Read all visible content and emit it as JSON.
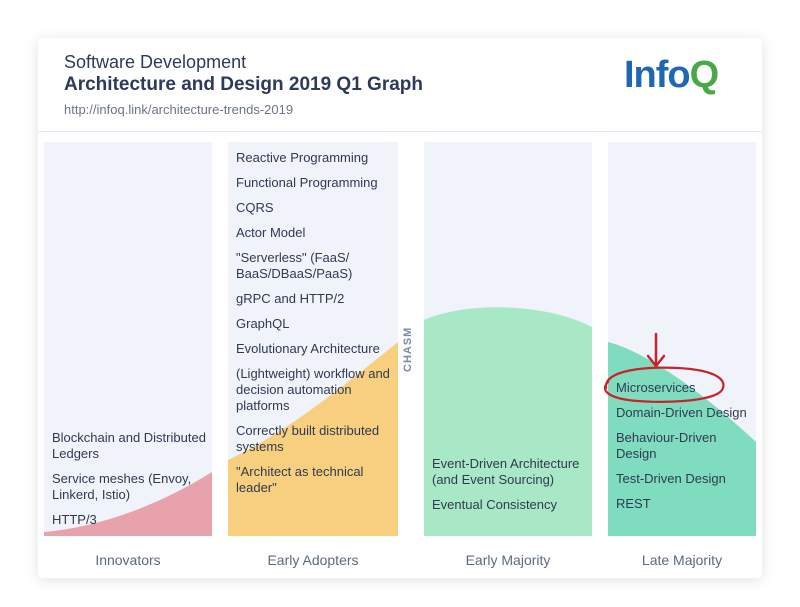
{
  "header": {
    "subtitle": "Software Development",
    "title": "Architecture and Design 2019 Q1 Graph",
    "url": "http://infoq.link/architecture-trends-2019",
    "logo_part1": "Info",
    "logo_part2": "Q"
  },
  "chasm_label": "CHASM",
  "columns": [
    {
      "label": "Innovators",
      "color": "#e8a2ac",
      "items": [
        "Blockchain and Distributed Ledgers",
        "Service meshes (Envoy, Linkerd, Istio)",
        "HTTP/3"
      ]
    },
    {
      "label": "Early Adopters",
      "color": "#f8cf7e",
      "items": [
        "Reactive Programming",
        "Functional Programming",
        "CQRS",
        "Actor Model",
        "\"Serverless\" (FaaS/ BaaS/DBaaS/PaaS)",
        "gRPC and HTTP/2",
        "GraphQL",
        "Evolutionary Architecture",
        "(Lightweight) workflow and decision automation platforms",
        "Correctly built distributed systems",
        "\"Architect as technical leader\""
      ]
    },
    {
      "label": "Early Majority",
      "color": "#a9e8c6",
      "items": [
        "Event-Driven Architecture (and Event Sourcing)",
        "Eventual Consistency"
      ]
    },
    {
      "label": "Late Majority",
      "color": "#7fdcbf",
      "items": [
        "Microservices",
        "Domain-Driven Design",
        "Behaviour-Driven Design",
        "Test-Driven Design",
        "REST"
      ]
    }
  ],
  "annotation": {
    "color": "#c8232c",
    "target": "Microservices"
  }
}
